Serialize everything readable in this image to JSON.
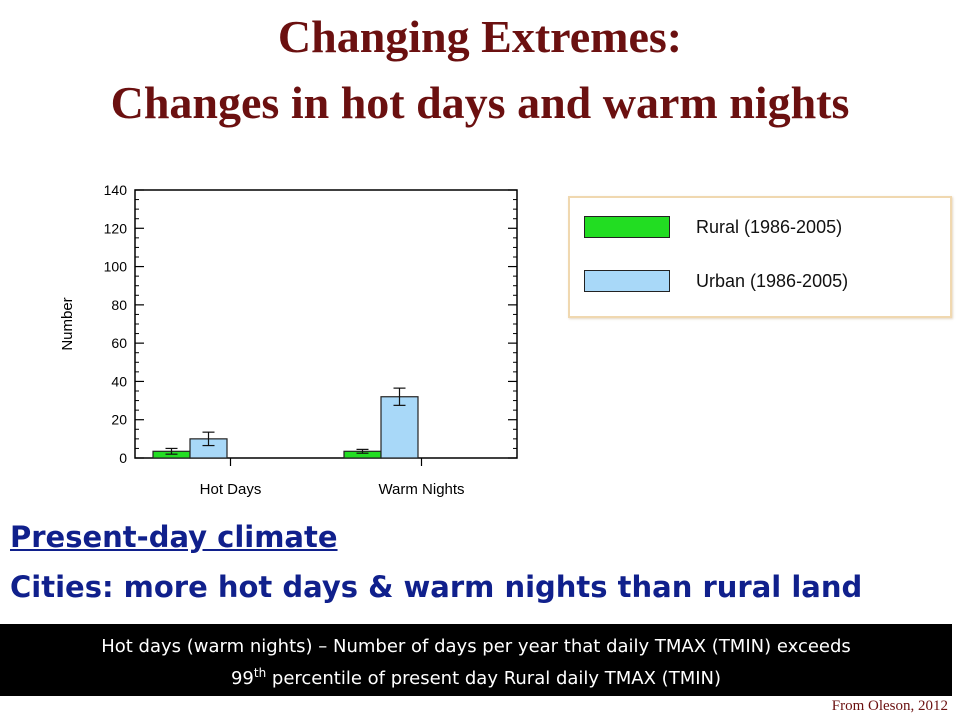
{
  "slide": {
    "title_line1": "Changing Extremes:",
    "title_line2": "Changes in hot days and warm nights",
    "subtitle_line1": "Present-day climate",
    "subtitle_line2": "Cities: more hot days & warm nights than rural land",
    "footer_line1": "Hot days (warm nights) – Number of days per year that daily TMAX (TMIN) exceeds",
    "footer_line2_pre": "99",
    "footer_line2_sup": "th",
    "footer_line2_post": " percentile of present day Rural daily TMAX (TMIN)",
    "credit": "From Oleson, 2012"
  },
  "chart_data": {
    "type": "bar",
    "categories": [
      "Hot Days",
      "Warm Nights"
    ],
    "series": [
      {
        "name": "Rural (1986-2005)",
        "color": "#22dd22",
        "values": [
          3.5,
          3.5
        ],
        "errors": [
          1.5,
          1.0
        ]
      },
      {
        "name": "Urban (1986-2005)",
        "color": "#a8d8f8",
        "values": [
          10,
          32
        ],
        "errors": [
          3.5,
          4.5
        ]
      }
    ],
    "ylabel": "Number",
    "xlabel": "",
    "ylim": [
      0,
      140
    ],
    "yticks": [
      0,
      20,
      40,
      60,
      80,
      100,
      120,
      140
    ],
    "grid": false,
    "legend_position": "right"
  }
}
